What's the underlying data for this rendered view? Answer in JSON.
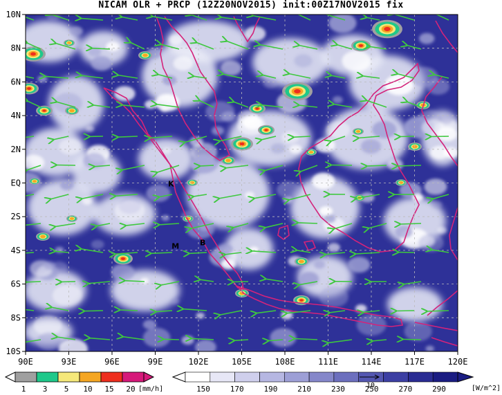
{
  "title": "NICAM OLR + PRCP (12Z20NOV2015) init:00Z17NOV2015 fix",
  "map": {
    "lon_range": [
      90,
      120
    ],
    "lat_range": [
      -10,
      10
    ],
    "lon_ticks": [
      "90E",
      "93E",
      "96E",
      "99E",
      "102E",
      "105E",
      "108E",
      "111E",
      "114E",
      "117E",
      "120E"
    ],
    "lat_ticks": [
      "10N",
      "8N",
      "6N",
      "4N",
      "2N",
      "EQ",
      "2S",
      "4S",
      "6S",
      "8S",
      "10S"
    ],
    "grid": "dashed",
    "place_labels": [
      {
        "text": "K",
        "lon": 100.1,
        "lat": -0.2
      },
      {
        "text": "M",
        "lon": 100.4,
        "lat": -3.9
      },
      {
        "text": "B",
        "lon": 102.3,
        "lat": -3.7
      }
    ],
    "colors": {
      "coastline": "#d4237a",
      "wind_vectors": "#3ec83e",
      "background_olr": "#2a2c9a"
    }
  },
  "precip_colorbar": {
    "labels": [
      "1",
      "3",
      "5",
      "10",
      "15",
      "20"
    ],
    "unit": "[mm/h]",
    "colors": [
      "#a0a0a0",
      "#1fc88a",
      "#f5e87a",
      "#f5a623",
      "#ee2e1e",
      "#d6197a"
    ]
  },
  "olr_colorbar": {
    "labels": [
      "150",
      "170",
      "190",
      "210",
      "230",
      "250",
      "270",
      "290"
    ],
    "unit": "[W/m^2]",
    "colors": [
      "#ffffff",
      "#e7e7f6",
      "#cfcfec",
      "#b6b7e2",
      "#9d9fd6",
      "#8587ca",
      "#6c6fbe",
      "#5457b1",
      "#3c3fa3",
      "#2a2c93",
      "#1a1c82"
    ],
    "ref_vector": "10"
  }
}
